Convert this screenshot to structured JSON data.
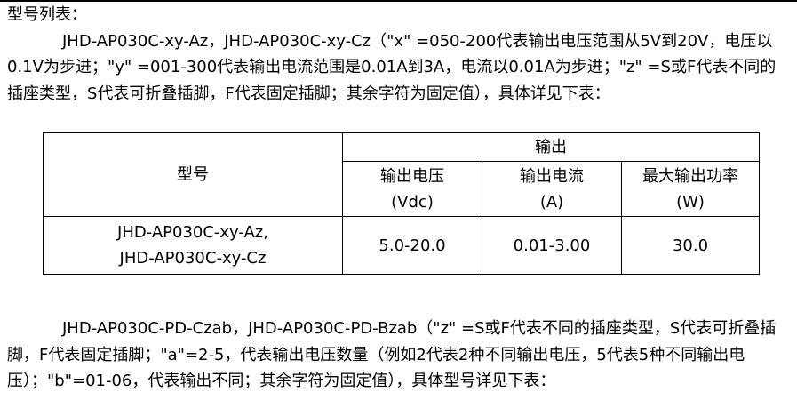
{
  "section_title": "型号列表：",
  "paragraph1": "JHD-AP030C-xy-Az，JHD-AP030C-xy-Cz（\"x\" =050-200代表输出电压范围从5V到20V，电压以0.1V为步进；\"y\" =001-300代表输出电流范围是0.01A到3A，电流以0.01A为步进；\"z\" =S或F代表不同的插座类型，S代表可折叠插脚，F代表固定插脚；其余字符为固定值），具体详见下表：",
  "table": {
    "model_header": "型号",
    "output_header": "输出",
    "columns": [
      {
        "line1": "输出电压",
        "line2": "(Vdc)"
      },
      {
        "line1": "输出电流",
        "line2": "(A)"
      },
      {
        "line1": "最大输出功率",
        "line2": "(W)"
      }
    ],
    "rows": [
      {
        "model_line1": "JHD-AP030C-xy-Az,",
        "model_line2": "JHD-AP030C-xy-Cz",
        "voltage": "5.0-20.0",
        "current": "0.01-3.00",
        "power": "30.0"
      }
    ]
  },
  "paragraph2": "JHD-AP030C-PD-Czab，JHD-AP030C-PD-Bzab（\"z\" =S或F代表不同的插座类型，S代表可折叠插脚，F代表固定插脚；\"a\"=2-5，代表输出电压数量（例如2代表2种不同输出电压，5代表5种不同输出电压）；\"b\"=01-06，代表输出不同；其余字符为固定值），具体型号详见下表："
}
